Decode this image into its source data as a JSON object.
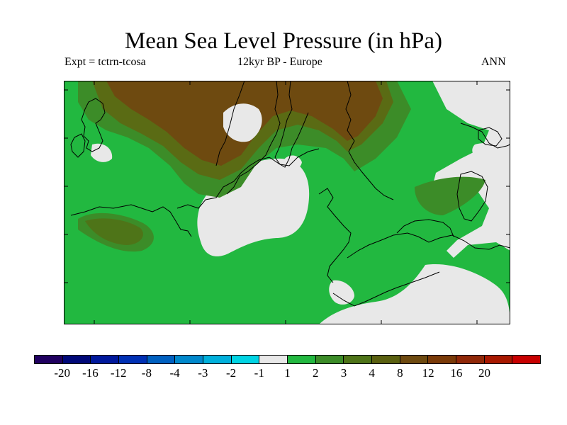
{
  "header": {
    "title": "Mean Sea Level Pressure (in hPa)",
    "experiment": "Expt = tctrn-tcosa",
    "period": "12kyr BP - Europe",
    "season": "ANN"
  },
  "map": {
    "region": "Europe",
    "variable": "Mean Sea Level Pressure",
    "units": "hPa",
    "colors": {
      "ocean_background": "#22b840",
      "near_zero": "#e8e8e8",
      "level_2_3": "#3c8c28",
      "level_3_4": "#5a6b14",
      "level_4_8": "#6e4a10",
      "level_8_12": "#7a3a08",
      "coastline": "#000000"
    }
  },
  "colorbar": {
    "colors": [
      "#200060",
      "#000878",
      "#00189c",
      "#0030b4",
      "#0060c0",
      "#0088cc",
      "#00b0dc",
      "#00d4e4",
      "#e8e8e8",
      "#22b840",
      "#3c8c28",
      "#4e7418",
      "#5a6010",
      "#6e4a10",
      "#7a3a08",
      "#902808",
      "#a81800",
      "#c80000"
    ],
    "labels": [
      "-20",
      "-16",
      "-12",
      "-8",
      "-4",
      "-3",
      "-2",
      "-1",
      "1",
      "2",
      "3",
      "4",
      "8",
      "12",
      "16",
      "20"
    ]
  }
}
